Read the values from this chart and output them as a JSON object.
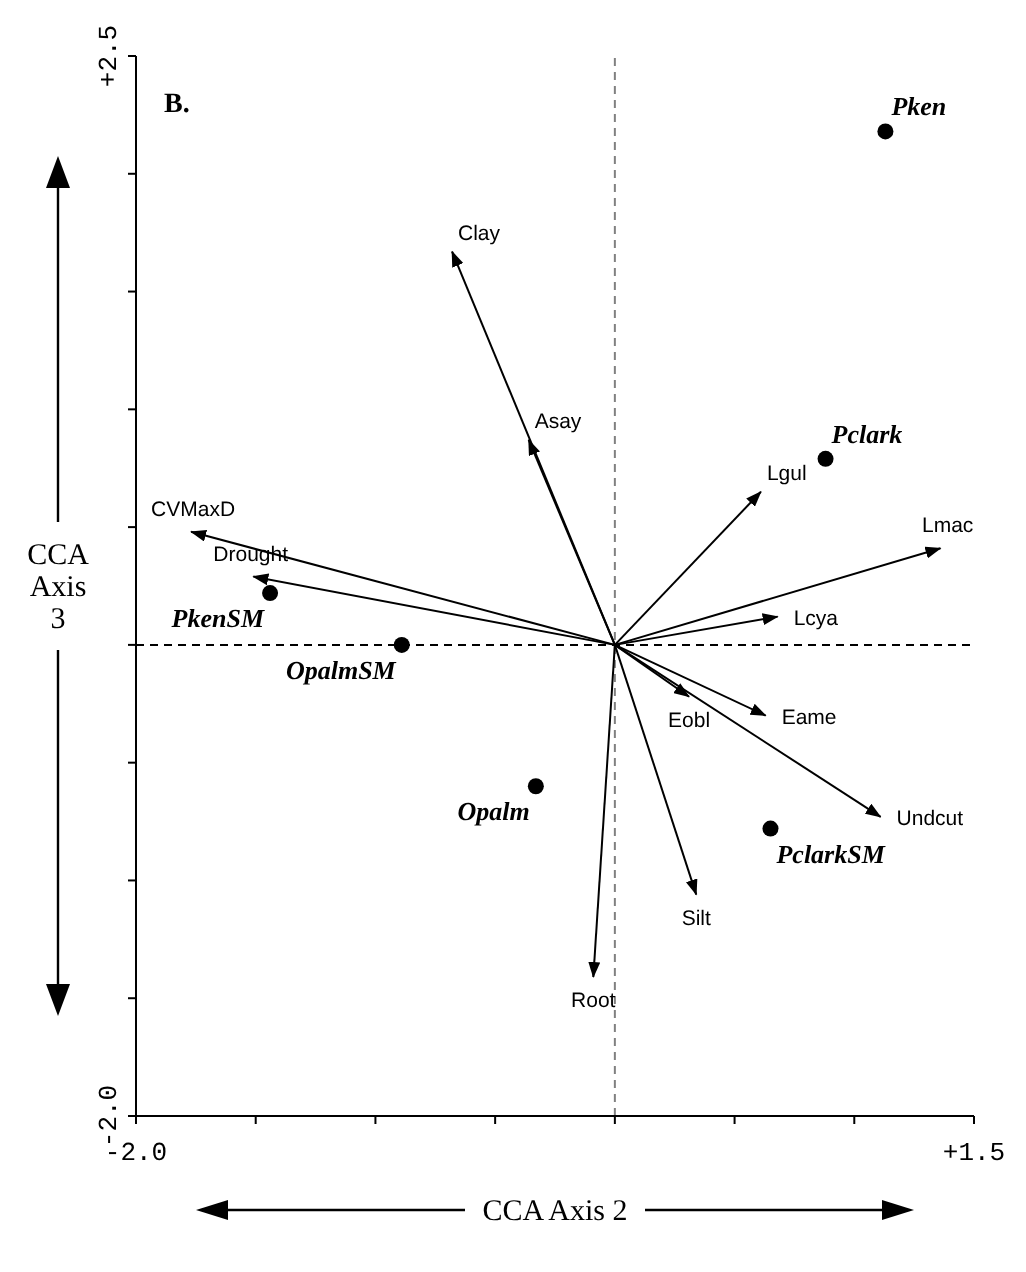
{
  "chart_data": {
    "type": "scatter",
    "xlabel": "CCA Axis 2",
    "ylabel": "CCA Axis 3",
    "annotations": [
      "B.",
      {
        "text": "Pken",
        "x": 1.13,
        "y": 2.18
      },
      {
        "text": "Pclark",
        "x": 0.88,
        "y": 0.79
      },
      {
        "text": "PkenSM",
        "x": -1.44,
        "y": 0.22
      },
      {
        "text": "OpalmSM",
        "x": -0.89,
        "y": 0.0
      },
      {
        "text": "Opalm",
        "x": -0.33,
        "y": -0.6
      },
      {
        "text": "PclarkSM",
        "x": 0.65,
        "y": -0.78
      }
    ],
    "xlim": [
      -2.0,
      1.5
    ],
    "ylim": [
      -2.0,
      2.5
    ],
    "xticks": [
      {
        "value": -2.0,
        "label": "-2.0"
      },
      {
        "value": -1.5,
        "label": null
      },
      {
        "value": -1.0,
        "label": null
      },
      {
        "value": -0.5,
        "label": null
      },
      {
        "value": 0,
        "label": null
      },
      {
        "value": 0.5,
        "label": null
      },
      {
        "value": 1.0,
        "label": null
      },
      {
        "value": 1.5,
        "label": "+1.5"
      }
    ],
    "yticks": [
      {
        "value": -2.0,
        "label": "-2.0"
      },
      {
        "value": -1.5,
        "label": null
      },
      {
        "value": -1.0,
        "label": null
      },
      {
        "value": -0.5,
        "label": null
      },
      {
        "value": 0,
        "label": null
      },
      {
        "value": 0.5,
        "label": null
      },
      {
        "value": 1.0,
        "label": null
      },
      {
        "value": 1.5,
        "label": null
      },
      {
        "value": 2.0,
        "label": null
      },
      {
        "value": 2.5,
        "label": "+2.5"
      }
    ],
    "legend": false,
    "ref_lines": [
      {
        "axis": "x",
        "value": 0,
        "color": "#808080",
        "line_style": "dashed"
      },
      {
        "axis": "y",
        "value": 0,
        "color": "#000000",
        "line_style": "dashed"
      }
    ],
    "series": [
      {
        "color": "#000000",
        "x": [
          1.13,
          0.88,
          -1.44,
          -0.89,
          -0.33,
          0.65
        ],
        "values": [
          2.18,
          0.79,
          0.22,
          0.0,
          -0.6,
          -0.78
        ]
      },
      {
        "type": "line",
        "name": "Clay",
        "color": "#000000",
        "x": [
          0,
          -0.68
        ],
        "values": [
          0,
          1.67
        ]
      },
      {
        "type": "line",
        "name": "Asay",
        "color": "#000000",
        "x": [
          0,
          -0.36
        ],
        "values": [
          0,
          0.87
        ]
      },
      {
        "type": "line",
        "name": "CVMaxD",
        "color": "#000000",
        "x": [
          0,
          -1.77
        ],
        "values": [
          0,
          0.48
        ]
      },
      {
        "type": "line",
        "name": "Drought",
        "color": "#000000",
        "x": [
          0,
          -1.51
        ],
        "values": [
          0,
          0.29
        ]
      },
      {
        "type": "line",
        "name": "Lgul",
        "color": "#000000",
        "x": [
          0,
          0.61
        ],
        "values": [
          0,
          0.65
        ]
      },
      {
        "type": "line",
        "name": "Lmac",
        "color": "#000000",
        "x": [
          0,
          1.36
        ],
        "values": [
          0,
          0.41
        ]
      },
      {
        "type": "line",
        "name": "Lcya",
        "color": "#000000",
        "x": [
          0,
          0.68
        ],
        "values": [
          0,
          0.12
        ]
      },
      {
        "type": "line",
        "name": "Eobl",
        "color": "#000000",
        "x": [
          0,
          0.31
        ],
        "values": [
          0,
          -0.22
        ]
      },
      {
        "type": "line",
        "name": "Eame",
        "color": "#000000",
        "x": [
          0,
          0.63
        ],
        "values": [
          0,
          -0.3
        ]
      },
      {
        "type": "line",
        "name": "Undcut",
        "color": "#000000",
        "x": [
          0,
          1.11
        ],
        "values": [
          0,
          -0.73
        ]
      },
      {
        "type": "line",
        "name": "Silt",
        "color": "#000000",
        "x": [
          0,
          0.34
        ],
        "values": [
          0,
          -1.06
        ]
      },
      {
        "type": "line",
        "name": "Root",
        "color": "#000000",
        "x": [
          0,
          -0.09
        ],
        "values": [
          0,
          -1.41
        ]
      }
    ]
  }
}
